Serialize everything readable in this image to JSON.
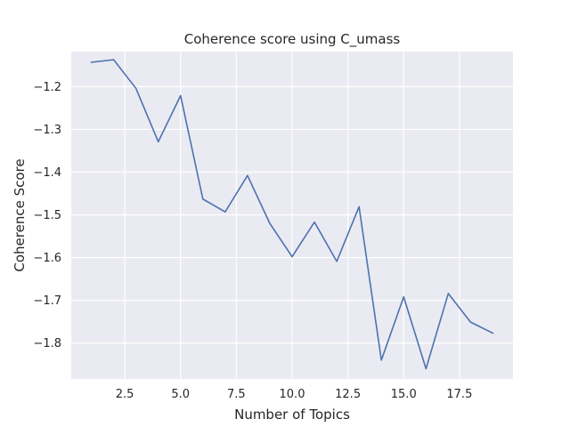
{
  "chart_data": {
    "type": "line",
    "title": "Coherence score using C_umass",
    "xlabel": "Number of Topics",
    "ylabel": "Coherence Score",
    "xlim": [
      0.1,
      19.9
    ],
    "ylim": [
      -1.884,
      -1.118
    ],
    "xticks": [
      2.5,
      5.0,
      7.5,
      10.0,
      12.5,
      15.0,
      17.5
    ],
    "xtick_labels": [
      "2.5",
      "5.0",
      "7.5",
      "10.0",
      "12.5",
      "15.0",
      "17.5"
    ],
    "yticks": [
      -1.2,
      -1.3,
      -1.4,
      -1.5,
      -1.6,
      -1.7,
      -1.8
    ],
    "ytick_labels": [
      "−1.2",
      "−1.3",
      "−1.4",
      "−1.5",
      "−1.6",
      "−1.7",
      "−1.8"
    ],
    "grid": true,
    "background": "#eaeaf2",
    "line_color": "#4c72b0",
    "series": [
      {
        "x": [
          1,
          2,
          3,
          4,
          5,
          6,
          7,
          8,
          9,
          10,
          11,
          12,
          13,
          14,
          15,
          16,
          17,
          18,
          19
        ],
        "values": [
          -1.143,
          -1.137,
          -1.204,
          -1.329,
          -1.221,
          -1.463,
          -1.493,
          -1.408,
          -1.52,
          -1.598,
          -1.517,
          -1.609,
          -1.481,
          -1.84,
          -1.692,
          -1.86,
          -1.684,
          -1.751,
          -1.777
        ]
      }
    ]
  }
}
